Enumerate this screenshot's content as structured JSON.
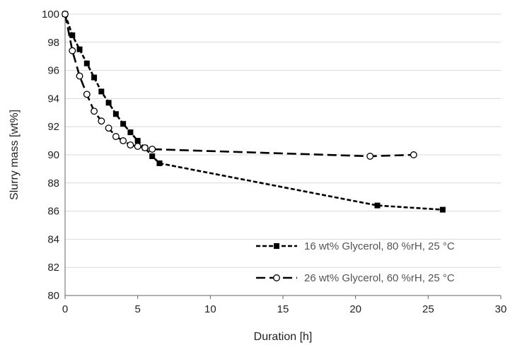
{
  "chart_data": {
    "type": "line",
    "xlabel": "Duration [h]",
    "ylabel": "Slurry mass [wt%]",
    "xlim": [
      0,
      30
    ],
    "ylim": [
      80,
      100
    ],
    "xticks": [
      0,
      5,
      10,
      15,
      20,
      25,
      30
    ],
    "yticks": [
      80,
      82,
      84,
      86,
      88,
      90,
      92,
      94,
      96,
      98,
      100
    ],
    "grid": "horizontal",
    "legend_position": "bottom-right",
    "series": [
      {
        "name": "16 wt% Glycerol, 80 %rH, 25 °C",
        "marker": "filled-square",
        "line_style": "short-dash",
        "color": "#000000",
        "x": [
          0,
          0.5,
          1,
          1.5,
          2,
          2.5,
          3,
          3.5,
          4,
          4.5,
          5,
          5.5,
          6,
          6.5,
          21.5,
          26
        ],
        "y": [
          100,
          98.5,
          97.5,
          96.5,
          95.5,
          94.5,
          93.7,
          92.9,
          92.2,
          91.6,
          91.0,
          90.5,
          89.9,
          89.4,
          86.4,
          86.1
        ]
      },
      {
        "name": "26 wt% Glycerol, 60 %rH, 25 °C",
        "marker": "open-circle",
        "line_style": "long-dash",
        "color": "#000000",
        "x": [
          0,
          0.5,
          1,
          1.5,
          2,
          2.5,
          3,
          3.5,
          4,
          4.5,
          5,
          5.5,
          6,
          21,
          24
        ],
        "y": [
          100,
          97.4,
          95.6,
          94.3,
          93.1,
          92.4,
          91.9,
          91.3,
          91.0,
          90.7,
          90.6,
          90.5,
          90.4,
          89.9,
          90.0
        ]
      }
    ]
  }
}
